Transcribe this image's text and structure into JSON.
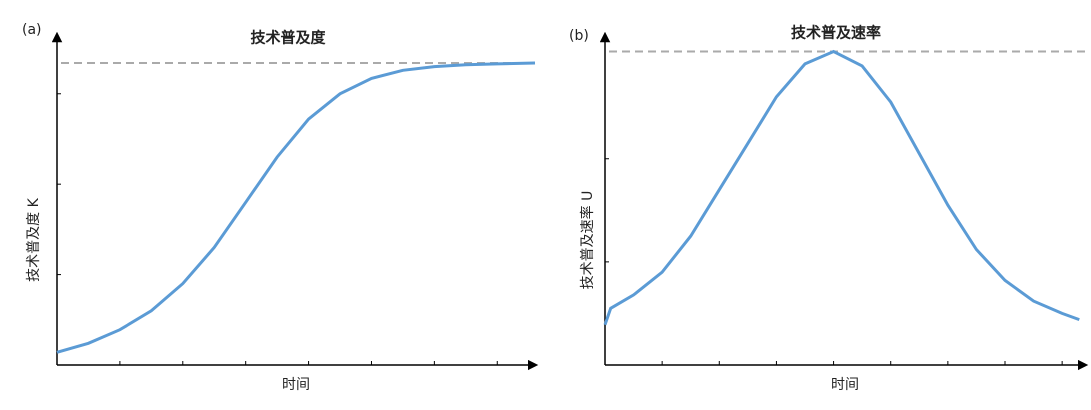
{
  "chart_data": [
    {
      "type": "line",
      "panel_label": "(a)",
      "title": "技术普及度",
      "xlabel": "时间",
      "ylabel": "技术普及度 K",
      "x": [
        0,
        0.5,
        1,
        1.5,
        2,
        2.5,
        3,
        3.5,
        4,
        4.5,
        5,
        5.5,
        6,
        6.5,
        7,
        7.6
      ],
      "series": [
        {
          "color": "#5b9bd5",
          "values": [
            0.14,
            0.24,
            0.39,
            0.6,
            0.9,
            1.3,
            1.8,
            2.3,
            2.72,
            3.0,
            3.17,
            3.26,
            3.3,
            3.32,
            3.33,
            3.34
          ]
        }
      ],
      "reference_line": {
        "value": 3.34,
        "color": "#aaaaaa",
        "dashed": true
      },
      "xlim": [
        0,
        7.6
      ],
      "ylim": [
        0,
        3.65
      ],
      "xticks": [
        1,
        2,
        3,
        4,
        5,
        6,
        7
      ],
      "yticks": [
        1,
        2,
        3
      ]
    },
    {
      "type": "line",
      "panel_label": "(b)",
      "title": "技术普及速率",
      "xlabel": "时间",
      "ylabel": "技术普及速率 U",
      "x": [
        0,
        0.1,
        0.5,
        1,
        1.5,
        2,
        2.5,
        3,
        3.5,
        4,
        4.5,
        5,
        5.5,
        6,
        6.5,
        7,
        7.5,
        8,
        8.3
      ],
      "series": [
        {
          "color": "#5b9bd5",
          "values": [
            0.39,
            0.55,
            0.68,
            0.9,
            1.25,
            1.7,
            2.15,
            2.6,
            2.92,
            3.04,
            2.9,
            2.55,
            2.05,
            1.55,
            1.12,
            0.82,
            0.62,
            0.5,
            0.44
          ]
        }
      ],
      "reference_line": {
        "value": 3.04,
        "color": "#aaaaaa",
        "dashed": true
      },
      "xlim": [
        0,
        8.4
      ],
      "ylim": [
        0,
        3.2
      ],
      "xticks": [
        1,
        2,
        3,
        4,
        5,
        6,
        7,
        8
      ],
      "yticks": [
        1,
        2
      ]
    }
  ]
}
